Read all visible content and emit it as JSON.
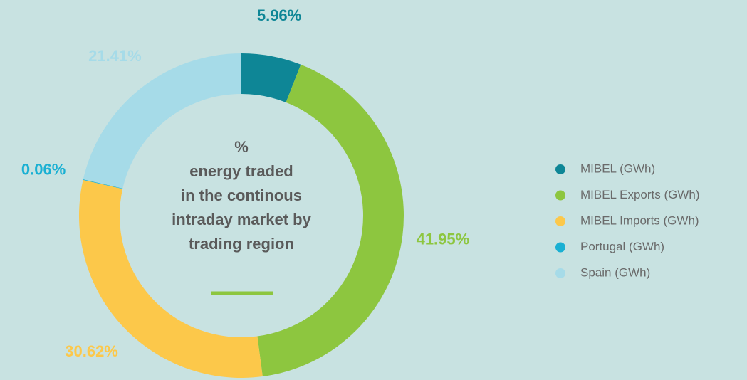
{
  "chart_data": {
    "type": "donut",
    "title": [
      "%",
      "energy traded",
      "in the continous",
      "intraday market by",
      "trading region"
    ],
    "categories": [
      "MIBEL (GWh)",
      "MIBEL Exports (GWh)",
      "MIBEL Imports (GWh)",
      "Portugal (GWh)",
      "Spain (GWh)"
    ],
    "values": [
      5.96,
      41.95,
      30.62,
      0.06,
      21.41
    ],
    "value_labels": [
      "5.96%",
      "41.95%",
      "30.62%",
      "0.06%",
      "21.41%"
    ],
    "colors": [
      "#0e8696",
      "#8dc63f",
      "#fcc84a",
      "#1ab0d3",
      "#a6dbe8"
    ],
    "legend": "right"
  }
}
